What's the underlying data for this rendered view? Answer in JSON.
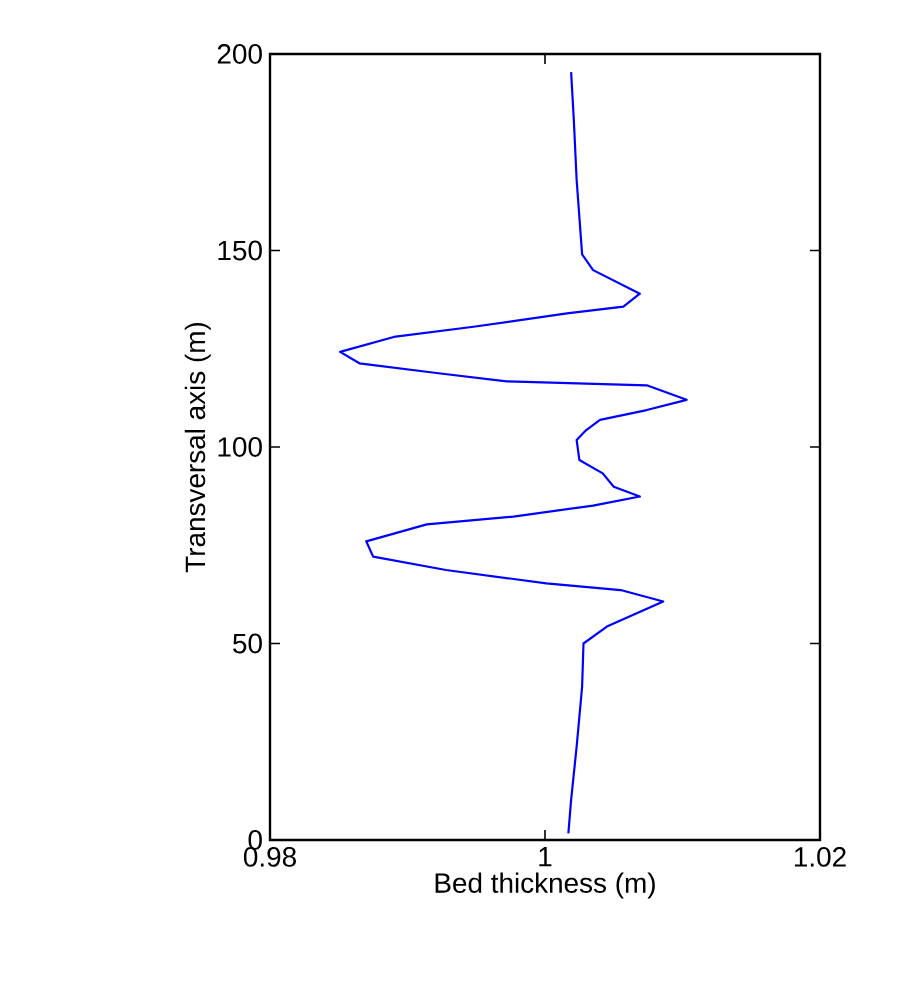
{
  "chart_data": {
    "type": "line",
    "xlabel": "Bed thickness (m)",
    "ylabel": "Transversal axis (m)",
    "xlim": [
      0.98,
      1.02
    ],
    "xticks": [
      0.98,
      1,
      1.02
    ],
    "ylim": [
      0,
      200
    ],
    "yticks": [
      0,
      50,
      100,
      150,
      200
    ],
    "grid": false,
    "series": [
      {
        "color": "#0000ff",
        "x": [
          1.0017,
          1.0019,
          1.0023,
          1.0027,
          1.0028,
          1.0045,
          1.0086,
          1.0055,
          1.0001,
          0.9928,
          0.9875,
          0.987,
          0.9914,
          0.9977,
          1.0035,
          1.0069,
          1.005,
          1.0042,
          1.0025,
          1.0023,
          1.003,
          1.004,
          1.0074,
          1.0103,
          1.0074,
          0.9972,
          0.9924,
          0.9865,
          0.9851,
          0.989,
          0.9948,
          1.0016,
          1.0057,
          1.0069,
          1.0035,
          1.0027,
          1.0023,
          1.0021,
          1.0019
        ],
        "values": [
          1.7,
          10.2,
          23.7,
          39,
          50,
          54.3,
          60.7,
          63.6,
          65.3,
          68.7,
          72.1,
          76,
          80.3,
          82.3,
          85.1,
          87.4,
          89.9,
          93.3,
          96.7,
          101.8,
          104.3,
          106.9,
          109.4,
          112,
          115.7,
          116.7,
          118.7,
          121.3,
          124.2,
          128,
          130.6,
          134,
          135.7,
          139,
          145,
          149,
          168,
          183,
          195.4
        ]
      }
    ]
  }
}
